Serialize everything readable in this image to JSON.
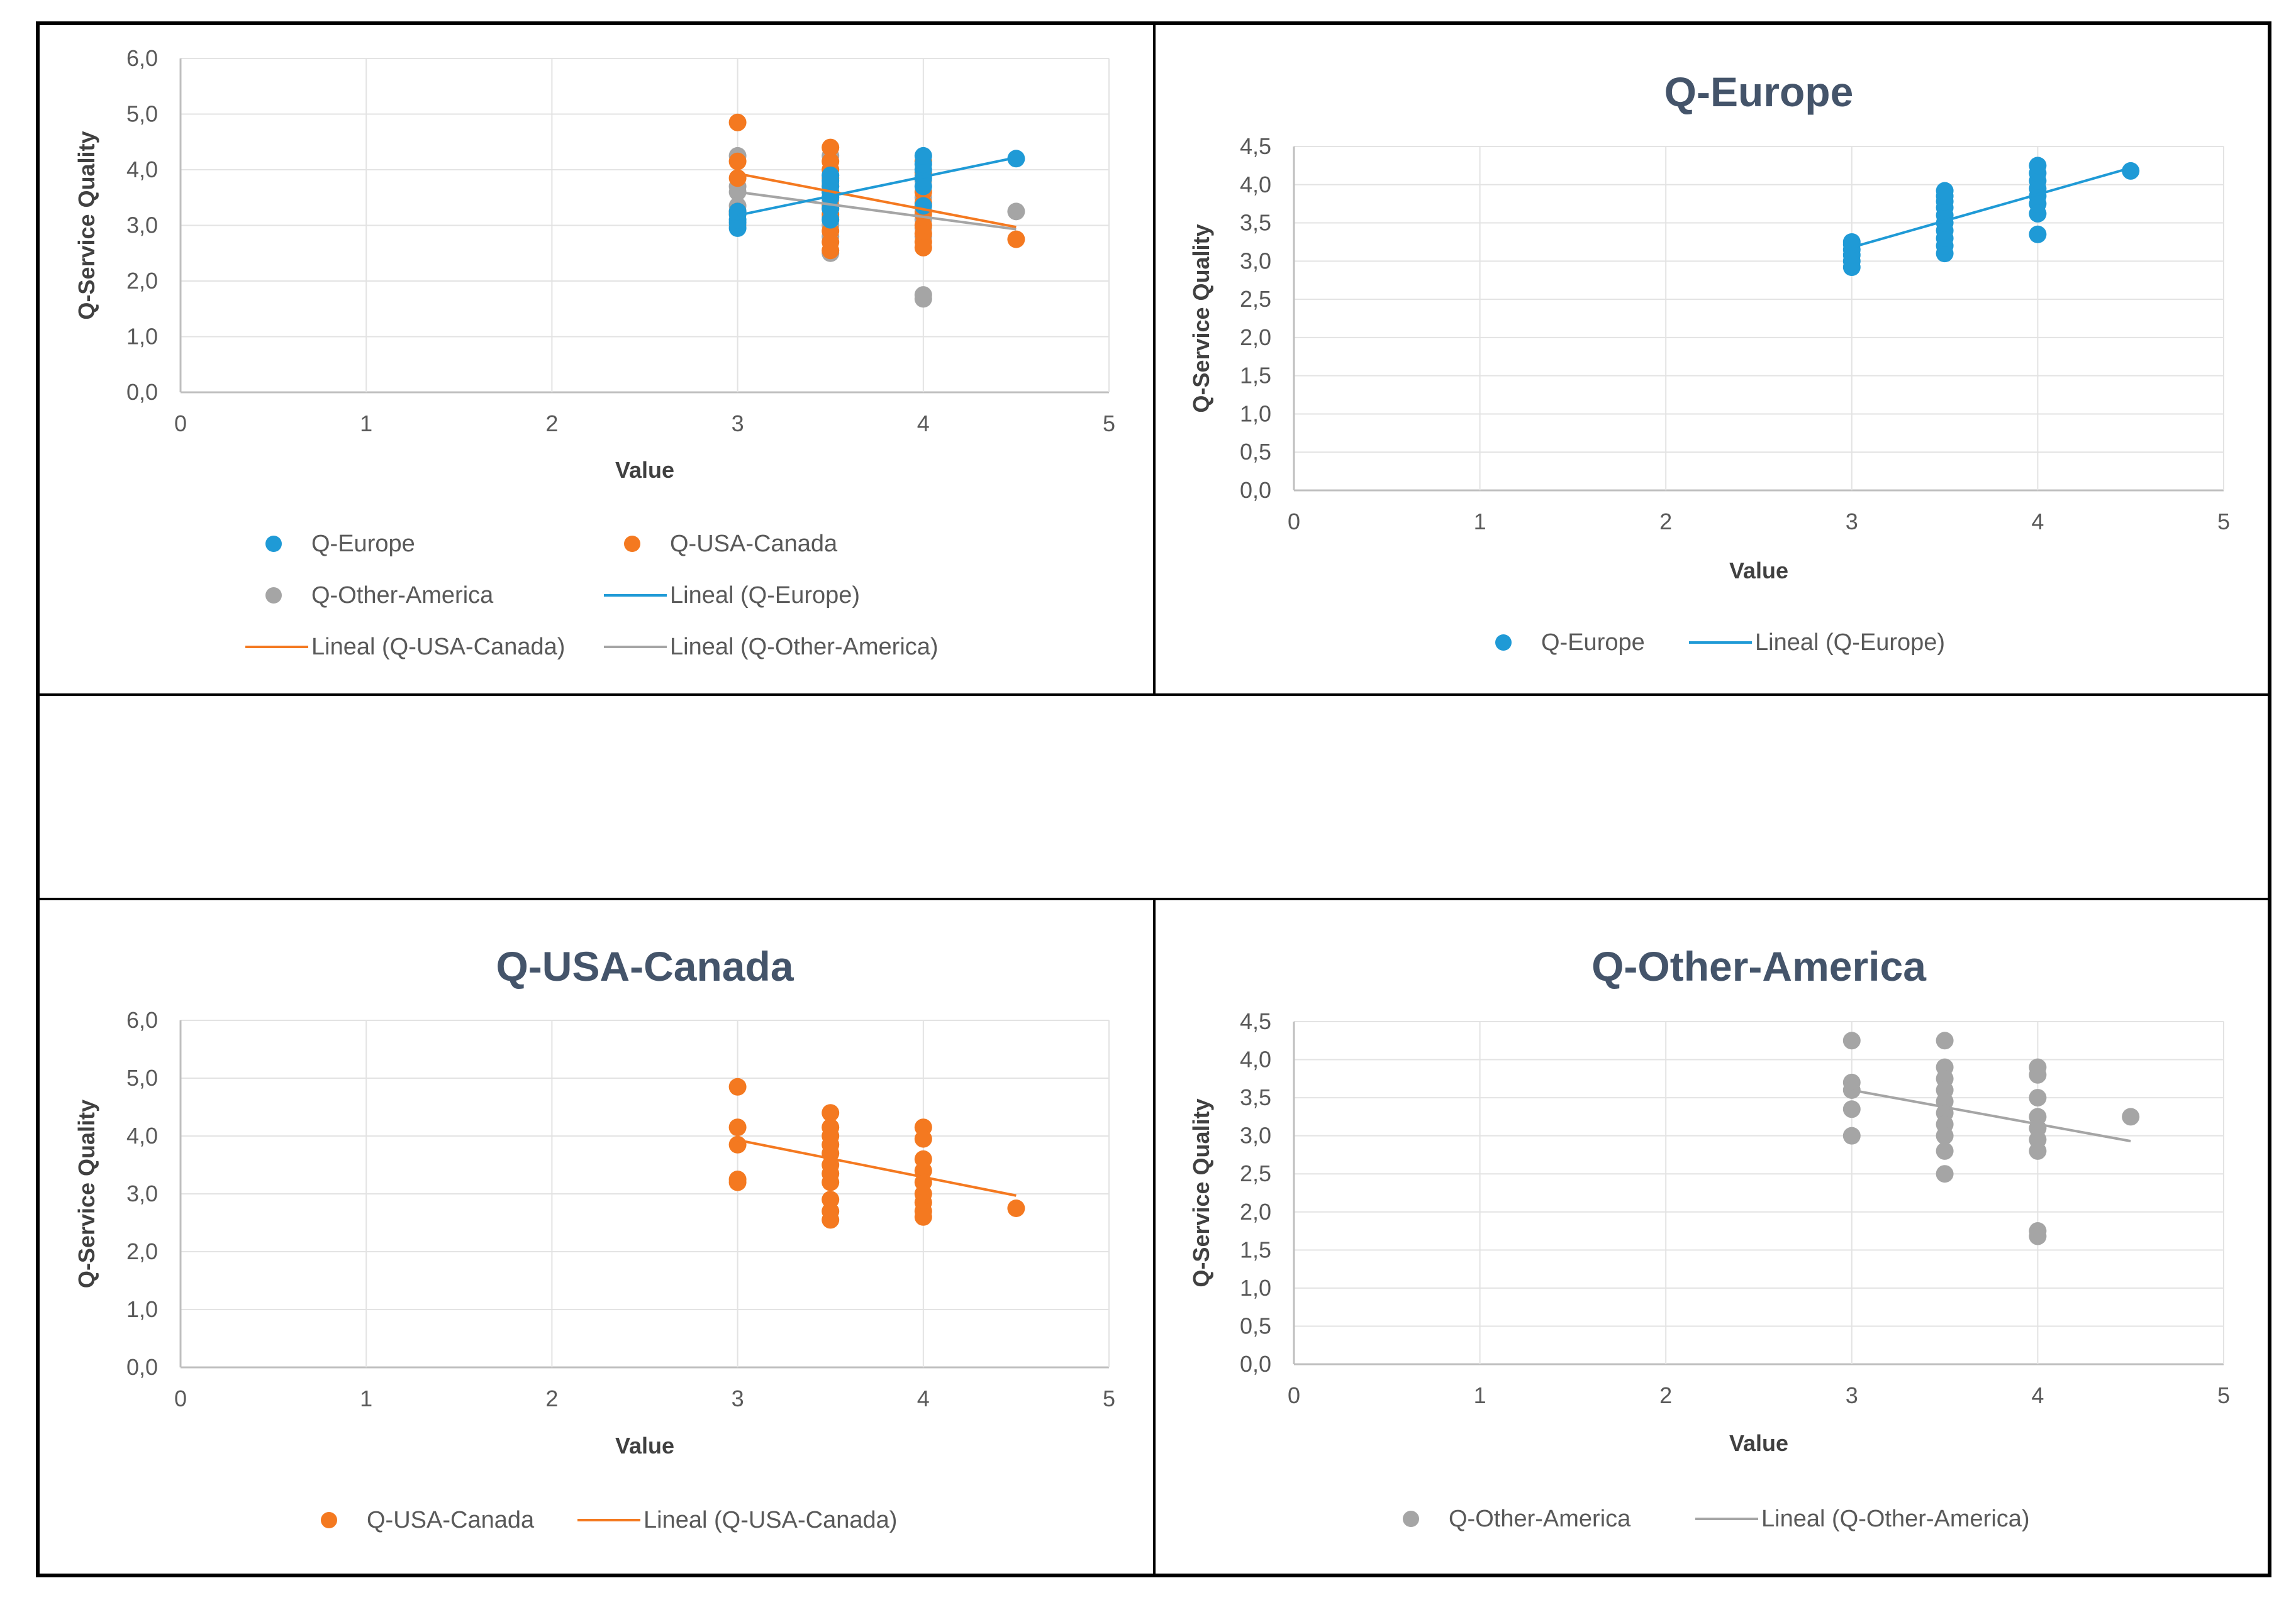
{
  "colors": {
    "europe": "#1f9ad6",
    "usa": "#f47920",
    "other": "#a5a5a5"
  },
  "chart_data": [
    {
      "type": "scatter",
      "title": "",
      "xlabel": "Value",
      "ylabel": "Q-Service Quality",
      "xlim": [
        0,
        5
      ],
      "ylim": [
        0,
        6
      ],
      "xticks": [
        "0",
        "1",
        "2",
        "3",
        "4",
        "5"
      ],
      "yticks": [
        "0,0",
        "1,0",
        "2,0",
        "3,0",
        "4,0",
        "5,0",
        "6,0"
      ],
      "series": [
        {
          "name": "Q-Europe",
          "color_key": "europe",
          "x": [
            3,
            3,
            3,
            3,
            3,
            3.5,
            3.5,
            3.5,
            3.5,
            3.5,
            3.5,
            3.5,
            3.5,
            4,
            4,
            4,
            4,
            4,
            4,
            4.5
          ],
          "y": [
            2.95,
            3.05,
            3.1,
            3.2,
            3.25,
            3.1,
            3.3,
            3.5,
            3.6,
            3.7,
            3.8,
            3.9,
            3.6,
            3.35,
            3.7,
            3.85,
            4.0,
            4.1,
            4.25,
            4.2
          ]
        },
        {
          "name": "Q-USA-Canada",
          "color_key": "usa",
          "x": [
            3,
            3,
            3,
            3,
            3,
            3.5,
            3.5,
            3.5,
            3.5,
            3.5,
            3.5,
            3.5,
            3.5,
            3.5,
            3.5,
            3.5,
            4,
            4,
            4,
            4,
            4,
            4,
            4,
            4,
            4,
            4.5
          ],
          "y": [
            4.85,
            4.15,
            3.85,
            3.25,
            3.2,
            4.4,
            4.15,
            4.0,
            3.85,
            3.7,
            3.5,
            3.35,
            3.2,
            2.9,
            2.7,
            2.55,
            4.15,
            3.95,
            3.6,
            3.4,
            3.2,
            3.0,
            2.85,
            2.7,
            2.6,
            2.75
          ],
          "trendline": {
            "label": "Lineal (Q-USA-Canada)",
            "x": [
              3,
              4.5
            ],
            "y": [
              3.93,
              2.97
            ]
          }
        },
        {
          "name": "Q-Other-America",
          "color_key": "other",
          "x": [
            3,
            3,
            3,
            3,
            3,
            3.5,
            3.5,
            3.5,
            3.5,
            3.5,
            3.5,
            3.5,
            3.5,
            3.5,
            3.5,
            4,
            4,
            4,
            4,
            4,
            4,
            4,
            4,
            4,
            4.5
          ],
          "y": [
            4.25,
            3.7,
            3.6,
            3.35,
            3.0,
            4.25,
            3.9,
            3.75,
            3.6,
            3.45,
            3.3,
            3.15,
            3.0,
            2.8,
            2.5,
            3.9,
            3.8,
            3.5,
            3.25,
            3.1,
            2.95,
            2.8,
            1.75,
            1.68,
            3.25
          ],
          "trendline": {
            "label": "Lineal (Q-Other-America)",
            "x": [
              3,
              4.5
            ],
            "y": [
              3.6,
              2.93
            ]
          }
        }
      ],
      "europe_trendline": {
        "label": "Lineal (Q-Europe)",
        "x": [
          3,
          4.5
        ],
        "y": [
          3.18,
          4.22
        ]
      }
    },
    {
      "type": "scatter",
      "title": "Q-Europe",
      "xlabel": "Value",
      "ylabel": "Q-Service Quality",
      "xlim": [
        0,
        5
      ],
      "ylim": [
        0,
        4.5
      ],
      "xticks": [
        "0",
        "1",
        "2",
        "3",
        "4",
        "5"
      ],
      "yticks": [
        "0,0",
        "0,5",
        "1,0",
        "1,5",
        "2,0",
        "2,5",
        "3,0",
        "3,5",
        "4,0",
        "4,5"
      ],
      "series": [
        {
          "name": "Q-Europe",
          "color_key": "europe",
          "x": [
            3,
            3,
            3,
            3,
            3,
            3,
            3.5,
            3.5,
            3.5,
            3.5,
            3.5,
            3.5,
            3.5,
            3.5,
            3.5,
            3.5,
            4,
            4,
            4,
            4,
            4,
            4,
            4,
            4,
            4.5
          ],
          "y": [
            2.92,
            3.0,
            3.08,
            3.15,
            3.22,
            3.25,
            3.1,
            3.2,
            3.3,
            3.4,
            3.5,
            3.6,
            3.7,
            3.78,
            3.85,
            3.92,
            3.35,
            3.62,
            3.75,
            3.85,
            3.95,
            4.05,
            4.15,
            4.25,
            4.18
          ],
          "trendline": {
            "label": "Lineal (Q-Europe)",
            "x": [
              3,
              4.5
            ],
            "y": [
              3.18,
              4.22
            ]
          }
        }
      ]
    },
    {
      "type": "scatter",
      "title": "Q-USA-Canada",
      "xlabel": "Value",
      "ylabel": "Q-Service Quality",
      "xlim": [
        0,
        5
      ],
      "ylim": [
        0,
        6
      ],
      "xticks": [
        "0",
        "1",
        "2",
        "3",
        "4",
        "5"
      ],
      "yticks": [
        "0,0",
        "1,0",
        "2,0",
        "3,0",
        "4,0",
        "5,0",
        "6,0"
      ],
      "series": [
        {
          "name": "Q-USA-Canada",
          "color_key": "usa",
          "x": [
            3,
            3,
            3,
            3,
            3,
            3.5,
            3.5,
            3.5,
            3.5,
            3.5,
            3.5,
            3.5,
            3.5,
            3.5,
            3.5,
            3.5,
            4,
            4,
            4,
            4,
            4,
            4,
            4,
            4,
            4,
            4.5
          ],
          "y": [
            4.85,
            4.15,
            3.85,
            3.25,
            3.2,
            4.4,
            4.15,
            4.0,
            3.85,
            3.7,
            3.5,
            3.35,
            3.2,
            2.9,
            2.7,
            2.55,
            4.15,
            3.95,
            3.6,
            3.4,
            3.2,
            3.0,
            2.85,
            2.7,
            2.6,
            2.75
          ],
          "trendline": {
            "label": "Lineal (Q-USA-Canada)",
            "x": [
              3,
              4.5
            ],
            "y": [
              3.93,
              2.97
            ]
          }
        }
      ]
    },
    {
      "type": "scatter",
      "title": "Q-Other-America",
      "xlabel": "Value",
      "ylabel": "Q-Service Quality",
      "xlim": [
        0,
        5
      ],
      "ylim": [
        0,
        4.5
      ],
      "xticks": [
        "0",
        "1",
        "2",
        "3",
        "4",
        "5"
      ],
      "yticks": [
        "0,0",
        "0,5",
        "1,0",
        "1,5",
        "2,0",
        "2,5",
        "3,0",
        "3,5",
        "4,0",
        "4,5"
      ],
      "series": [
        {
          "name": "Q-Other-America",
          "color_key": "other",
          "x": [
            3,
            3,
            3,
            3,
            3,
            3.5,
            3.5,
            3.5,
            3.5,
            3.5,
            3.5,
            3.5,
            3.5,
            3.5,
            3.5,
            4,
            4,
            4,
            4,
            4,
            4,
            4,
            4,
            4,
            4.5
          ],
          "y": [
            4.25,
            3.7,
            3.6,
            3.35,
            3.0,
            4.25,
            3.9,
            3.75,
            3.6,
            3.45,
            3.3,
            3.15,
            3.0,
            2.8,
            2.5,
            3.9,
            3.8,
            3.5,
            3.25,
            3.1,
            2.95,
            2.8,
            1.75,
            1.68,
            3.25
          ],
          "trendline": {
            "label": "Lineal (Q-Other-America)",
            "x": [
              3,
              4.5
            ],
            "y": [
              3.6,
              2.93
            ]
          }
        }
      ]
    }
  ]
}
